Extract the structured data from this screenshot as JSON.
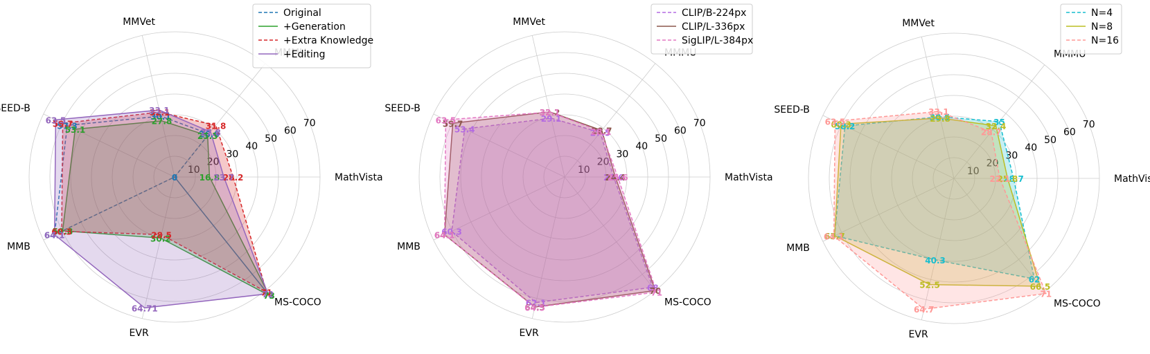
{
  "chart_data": [
    {
      "type": "radar",
      "axes": [
        "MathVista",
        "MMMU",
        "MMVet",
        "SEED-B",
        "MMB",
        "EVR",
        "MS-COCO"
      ],
      "rticks": [
        10,
        20,
        30,
        40,
        50,
        60,
        70
      ],
      "rlim": [
        0,
        70
      ],
      "legend": "top-right",
      "series": [
        {
          "name": "Original",
          "color": "#1f77b4",
          "dash": true,
          "fill": false,
          "values": [
            0,
            26.6,
            30.1,
            57.3,
            64.1,
            0,
            73
          ],
          "labels": [
            "0",
            "26.6",
            "30.1",
            "57.3",
            "64.1",
            "0",
            "73"
          ]
        },
        {
          "name": "+Generation",
          "color": "#2ca02c",
          "dash": false,
          "fill": true,
          "values": [
            16.8,
            25.5,
            27.8,
            53.1,
            59.8,
            30.2,
            73
          ],
          "labels": [
            "16.8",
            "25.5",
            "27.8",
            "53.1",
            "59.8",
            "30.2",
            "73"
          ]
        },
        {
          "name": "+Extra Knowledge",
          "color": "#d62728",
          "dash": true,
          "fill": true,
          "values": [
            28.2,
            31.8,
            32.1,
            59.7,
            60.3,
            28.5,
            71
          ],
          "labels": [
            "28.2",
            "31.8",
            "32.1",
            "59.7",
            "60.3",
            "28.5",
            "71"
          ]
        },
        {
          "name": "+Editing",
          "color": "#9467bd",
          "dash": false,
          "fill": true,
          "values": [
            23.7,
            27.8,
            33.1,
            63.5,
            64.1,
            64.71,
            72
          ],
          "labels": [
            "23.7",
            "27.8",
            "33.1",
            "63.5",
            "64.1",
            "64.71",
            "72"
          ]
        }
      ]
    },
    {
      "type": "radar",
      "axes": [
        "MathVista",
        "MMMU",
        "MMVet",
        "SEED-B",
        "MMB",
        "EVR",
        "MS-COCO"
      ],
      "rticks": [
        10,
        20,
        30,
        40,
        50,
        60,
        70
      ],
      "rlim": [
        0,
        70
      ],
      "legend": "top-right",
      "series": [
        {
          "name": "CLIP/B-224px",
          "color": "#b36ae2",
          "dash": true,
          "fill": true,
          "values": [
            23.6,
            27.5,
            29.1,
            53.4,
            60.3,
            62.1,
            68
          ],
          "labels": [
            "23.6",
            "27.5",
            "29.1",
            "53.4",
            "60.3",
            "62.1",
            "68"
          ]
        },
        {
          "name": "CLIP/L-336px",
          "color": "#8c564b",
          "dash": false,
          "fill": true,
          "values": [
            24.4,
            28.7,
            32.2,
            59.7,
            64.1,
            64.3,
            70
          ],
          "labels": [
            "24.4",
            "28.7",
            "32.2",
            "59.7",
            "64.1",
            "64.3",
            "70"
          ]
        },
        {
          "name": "SigLIP/L-384px",
          "color": "#e377c2",
          "dash": true,
          "fill": true,
          "values": [
            25.6,
            28.1,
            32.1,
            63.5,
            64.1,
            64.5,
            71
          ],
          "labels": [
            "25.6",
            "28.1",
            "32.1",
            "63.5",
            "64.1",
            "64.5",
            "71"
          ]
        }
      ]
    },
    {
      "type": "radar",
      "axes": [
        "MathVista",
        "MMMU",
        "MMVet",
        "SEED-B",
        "MMB",
        "EVR",
        "MS-COCO"
      ],
      "rticks": [
        10,
        20,
        30,
        40,
        50,
        60,
        70
      ],
      "rlim": [
        0,
        70
      ],
      "legend": "top-right",
      "series": [
        {
          "name": "N=4",
          "color": "#17becf",
          "dash": true,
          "fill": true,
          "values": [
            28.7,
            35,
            30.5,
            58.2,
            63.7,
            40.3,
            62
          ],
          "labels": [
            "28.7",
            "35",
            "30.5",
            "58.2",
            "63.7",
            "40.3",
            "62"
          ]
        },
        {
          "name": "N=8",
          "color": "#bcbd22",
          "dash": false,
          "fill": true,
          "values": [
            25.8,
            32.4,
            29.8,
            60.3,
            63.7,
            52.5,
            66.5
          ],
          "labels": [
            "25.8",
            "32.4",
            "29.8",
            "60.3",
            "63.7",
            "52.5",
            "66.5"
          ]
        },
        {
          "name": "N=16",
          "color": "#ff9896",
          "dash": true,
          "fill": true,
          "values": [
            22.1,
            28.7,
            33.1,
            63.5,
            64.1,
            64.7,
            71
          ],
          "labels": [
            "22.1",
            "28.7",
            "33.1",
            "63.5",
            "64.1",
            "64.7",
            "71"
          ]
        }
      ]
    }
  ]
}
